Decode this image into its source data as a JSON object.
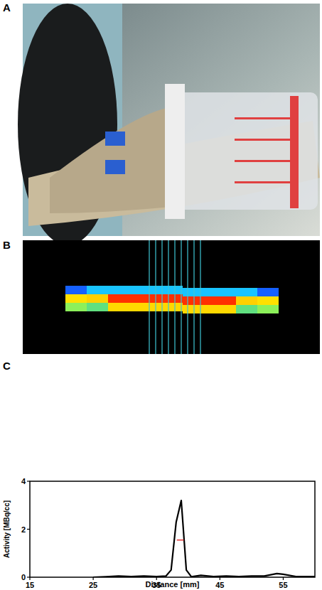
{
  "panel_labels": [
    "A",
    "B",
    "C"
  ],
  "chart_data": {
    "type": "line",
    "x_label": "Distance [mm]",
    "y_label": "Activity [MBq/cc]",
    "x": [
      25,
      27,
      29,
      31,
      33,
      35,
      36.5,
      37.3,
      38.1,
      38.9,
      39.7,
      40.5,
      42,
      44,
      46,
      48,
      50,
      52,
      54,
      55,
      57,
      60
    ],
    "values": [
      0,
      0.02,
      0.05,
      0.03,
      0.05,
      0.03,
      0.05,
      0.3,
      2.3,
      3.2,
      0.3,
      0.02,
      0.08,
      0.03,
      0.05,
      0.03,
      0.05,
      0.05,
      0.15,
      0.12,
      0.03,
      0.03
    ],
    "color": "#000000",
    "half_max": 1.55,
    "half_max_x": [
      38.2,
      39.3
    ],
    "xlim": [
      15,
      60
    ],
    "xticks": [
      15,
      25,
      35,
      45,
      55
    ],
    "ylim": [
      0,
      4
    ],
    "yticks": [
      0,
      2,
      4
    ],
    "grid": false
  }
}
